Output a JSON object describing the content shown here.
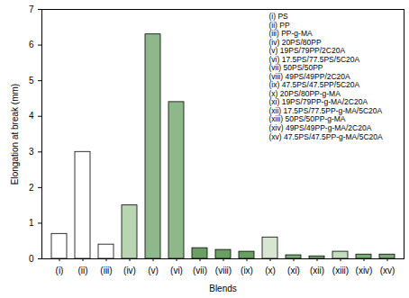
{
  "chart_data": {
    "type": "bar",
    "x_label": "Blends",
    "y_label": "Elongation at break (mm)",
    "categories": [
      "(i)",
      "(ii)",
      "(iii)",
      "(iv)",
      "(v)",
      "(vi)",
      "(vii)",
      "(viii)",
      "(ix)",
      "(x)",
      "(xi)",
      "(xii)",
      "(xiii)",
      "(xiv)",
      "(xv)"
    ],
    "values": [
      0.7,
      3.0,
      0.4,
      1.5,
      6.3,
      4.4,
      0.3,
      0.25,
      0.2,
      0.6,
      0.1,
      0.07,
      0.2,
      0.12,
      0.12
    ],
    "colors": [
      "#ffffff",
      "#ffffff",
      "#ffffff",
      "#b9d4b0",
      "#8fb88a",
      "#8fb88a",
      "#6a9f64",
      "#6a9f64",
      "#6a9f64",
      "#d6e6d1",
      "#7aae74",
      "#7aae74",
      "#c3dcbd",
      "#7aae74",
      "#7aae74"
    ],
    "ylim": [
      0,
      7
    ],
    "yticks": [
      0,
      1,
      2,
      3,
      4,
      5,
      6,
      7
    ],
    "annotations": [
      "(i) PS",
      "(ii) PP",
      "(iii) PP-g-MA",
      "(iv) 20PS/80PP",
      "(v) 19PS/79PP/2C20A",
      "(vi) 17.5PS/77.5PS/5C20A",
      "(vii) 50PS/50PP",
      "(viii) 49PS/49PP/2C20A",
      "(ix) 47.5PS/47.5PP/5C20A",
      "(x) 20PS/80PP-g-MA",
      "(xi) 19PS/79PP-g-MA/2C20A",
      "(xii) 17.5PS/77.5PP-g-MA/5C20A",
      "(xiii) 50PS/50PP-g-MA",
      "(xiv) 49PS/49PP-g-MA/2C20A",
      "(xv) 47.5PS/47.5PP-g-MA/5C20A"
    ]
  }
}
